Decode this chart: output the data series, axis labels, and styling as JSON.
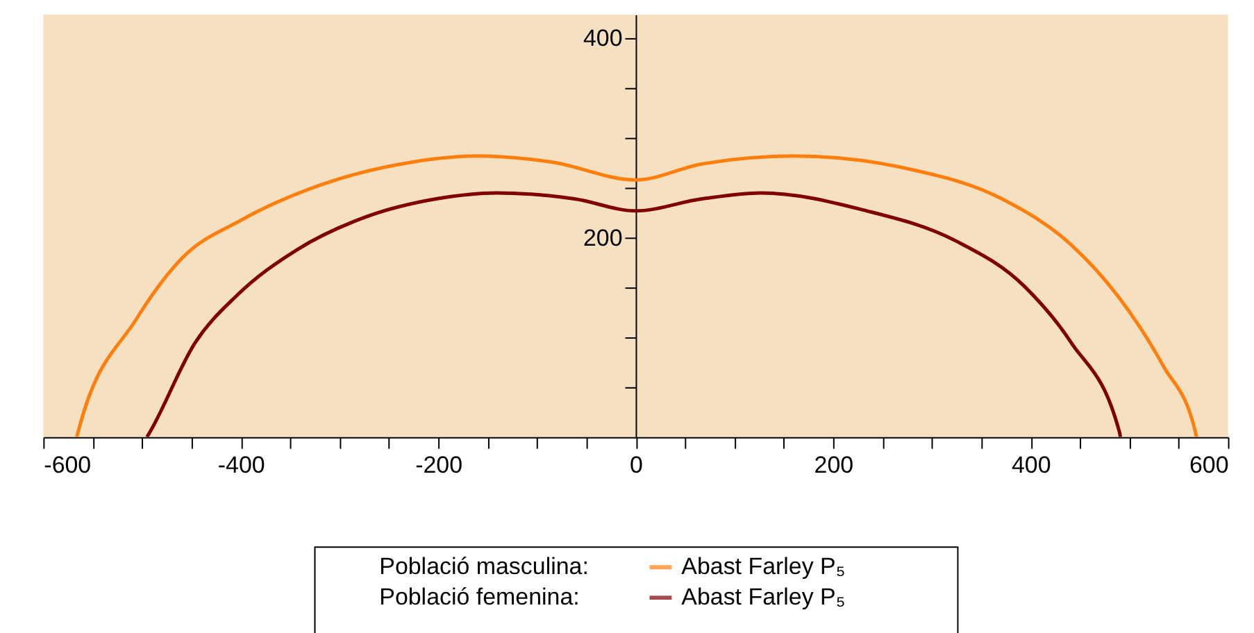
{
  "chart_data": {
    "type": "line",
    "legend": "bottom",
    "xlim": [
      -600,
      600
    ],
    "ylim": [
      0,
      424
    ],
    "xticks": [
      -600,
      {
        "value": -550,
        "label": null
      },
      {
        "value": -500,
        "label": null
      },
      {
        "value": -450,
        "label": null
      },
      -400,
      {
        "value": -350,
        "label": null
      },
      {
        "value": -300,
        "label": null
      },
      {
        "value": -250,
        "label": null
      },
      -200,
      {
        "value": -150,
        "label": null
      },
      {
        "value": -100,
        "label": null
      },
      {
        "value": -50,
        "label": null
      },
      0,
      {
        "value": 50,
        "label": null
      },
      {
        "value": 100,
        "label": null
      },
      {
        "value": 150,
        "label": null
      },
      200,
      {
        "value": 250,
        "label": null
      },
      {
        "value": 300,
        "label": null
      },
      {
        "value": 350,
        "label": null
      },
      400,
      {
        "value": 450,
        "label": null
      },
      {
        "value": 500,
        "label": null
      },
      {
        "value": 550,
        "label": null
      },
      600
    ],
    "yticks": [
      {
        "value": 50,
        "label": null
      },
      {
        "value": 100,
        "label": null
      },
      {
        "value": 150,
        "label": null
      },
      200,
      {
        "value": 250,
        "label": null
      },
      {
        "value": 300,
        "label": null
      },
      {
        "value": 350,
        "label": null
      },
      400
    ],
    "annotations": [
      "Població masculina:",
      "Població femenina:"
    ],
    "series": [
      {
        "name": "Abast Farley P₅",
        "color": "#ff7f0e",
        "x": [
          -566,
          -565,
          -506,
          -460,
          -399,
          -319,
          -226,
          -161,
          -85,
          0,
          67,
          160,
          277,
          371,
          441,
          488,
          534,
          567,
          568
        ],
        "values": [
          0,
          4,
          118,
          179,
          218,
          253,
          276,
          282,
          276,
          258,
          274,
          282,
          269,
          239,
          193,
          142,
          72,
          5,
          0
        ]
      },
      {
        "name": "Abast Farley P₅",
        "color": "#800000",
        "x": [
          -495,
          -492,
          -446,
          -404,
          -343,
          -273,
          -202,
          -141,
          -62,
          0,
          67,
          127,
          230,
          324,
          394,
          441,
          490,
          491
        ],
        "values": [
          0,
          5,
          95,
          142,
          188,
          221,
          239,
          245,
          239,
          227,
          239,
          245,
          228,
          197,
          151,
          95,
          5,
          0
        ]
      }
    ]
  }
}
